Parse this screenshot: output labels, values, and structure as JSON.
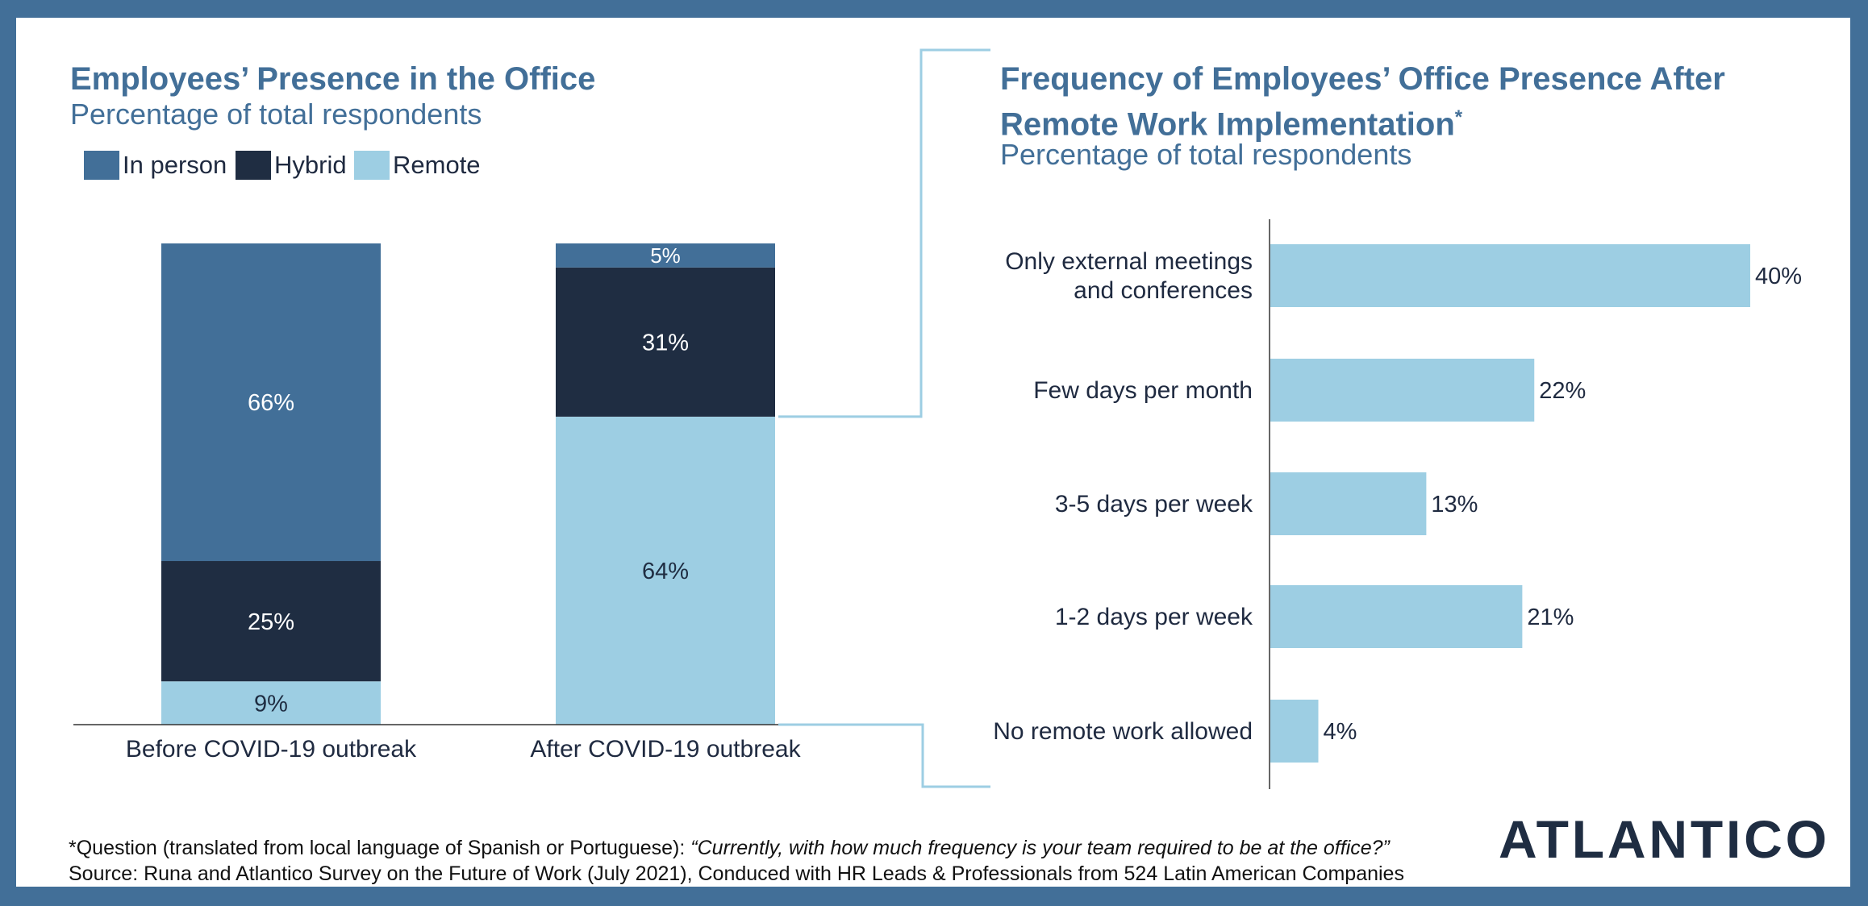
{
  "left_panel": {
    "title": "Employees’ Presence in the Office",
    "subtitle": "Percentage of total respondents"
  },
  "right_panel": {
    "title_line1": "Frequency of Employees’ Office Presence After",
    "title_line2": "Remote Work Implementation",
    "title_marker": "*",
    "subtitle": "Percentage of total respondents"
  },
  "footnote": {
    "question_prefix": "*Question (translated from local language of Spanish or Portuguese): ",
    "question_text": "“Currently, with how much frequency is your team required to be at the office?”",
    "source": "Source: Runa and Atlantico Survey on the Future of Work (July 2021), Conduced with HR Leads & Professionals from 524 Latin American Companies"
  },
  "logo": {
    "text": "ATLANTICO"
  },
  "colors": {
    "in_person": "#426f98",
    "hybrid": "#1f2d42",
    "remote": "#9dcee3",
    "title": "#426f98",
    "frame": "#426f98",
    "connector": "#9dcee3"
  },
  "chart_data": [
    {
      "type": "bar",
      "stacked": true,
      "orientation": "vertical",
      "categories": [
        "Before COVID-19 outbreak",
        "After COVID-19 outbreak"
      ],
      "series": [
        {
          "name": "Remote",
          "color": "#9dcee3",
          "values": [
            9,
            64
          ],
          "labels": [
            "9%",
            "64%"
          ]
        },
        {
          "name": "Hybrid",
          "color": "#1f2d42",
          "values": [
            25,
            31
          ],
          "labels": [
            "25%",
            "31%"
          ]
        },
        {
          "name": "In person",
          "color": "#426f98",
          "values": [
            66,
            5
          ],
          "labels": [
            "66%",
            "5%"
          ]
        }
      ],
      "legend": [
        "In person",
        "Hybrid",
        "Remote"
      ],
      "legend_placement": "top-left",
      "title": "Employees’ Presence in the Office",
      "subtitle": "Percentage of total respondents",
      "ylim": [
        0,
        100
      ],
      "grid": false
    },
    {
      "type": "bar",
      "orientation": "horizontal",
      "categories": [
        [
          "Only external meetings",
          "and conferences"
        ],
        [
          "Few days per month"
        ],
        [
          "3-5 days per week"
        ],
        [
          "1-2 days per week"
        ],
        [
          "No remote work allowed"
        ]
      ],
      "values": [
        40,
        22,
        13,
        21,
        4
      ],
      "labels": [
        "40%",
        "22%",
        "13%",
        "21%",
        "4%"
      ],
      "color": "#9dcee3",
      "title": "Frequency of Employees’ Office Presence After Remote Work Implementation*",
      "subtitle": "Percentage of total respondents",
      "xlim": [
        0,
        40
      ],
      "grid": false
    }
  ]
}
